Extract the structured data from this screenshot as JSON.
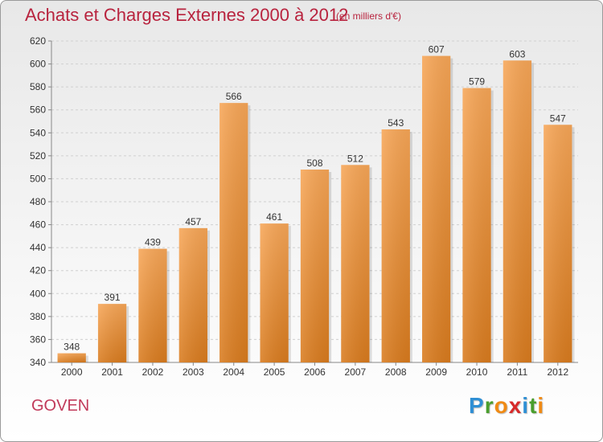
{
  "header": {
    "title": "Achats et Charges Externes 2000 à 2012",
    "unit": "(en milliers d'€)"
  },
  "footer": {
    "commune": "GOVEN",
    "logo_text": "Proxiti",
    "logo_letters": [
      {
        "char": "P",
        "color": "#2f8fd4"
      },
      {
        "char": "r",
        "color": "#4a9e2d"
      },
      {
        "char": "o",
        "color": "#f08a14"
      },
      {
        "char": "x",
        "color": "#d72a2a"
      },
      {
        "char": "i",
        "color": "#2f8fd4"
      },
      {
        "char": "t",
        "color": "#4a9e2d"
      },
      {
        "char": "i",
        "color": "#f08a14"
      }
    ]
  },
  "colors": {
    "bar_top": "#f7a657",
    "bar_bottom": "#d97b1e",
    "text": "#333333",
    "title": "#b8233e"
  },
  "chart_data": {
    "type": "bar",
    "categories": [
      "2000",
      "2001",
      "2002",
      "2003",
      "2004",
      "2005",
      "2006",
      "2007",
      "2008",
      "2009",
      "2010",
      "2011",
      "2012"
    ],
    "values": [
      348,
      391,
      439,
      457,
      566,
      461,
      508,
      512,
      543,
      607,
      579,
      603,
      547
    ],
    "title": "Achats et Charges Externes 2000 à 2012",
    "xlabel": "",
    "ylabel": "",
    "ylim": [
      340,
      620
    ],
    "yticks": [
      340,
      360,
      380,
      400,
      420,
      440,
      460,
      480,
      500,
      520,
      540,
      560,
      580,
      600,
      620
    ],
    "grid": true,
    "legend": "none"
  }
}
